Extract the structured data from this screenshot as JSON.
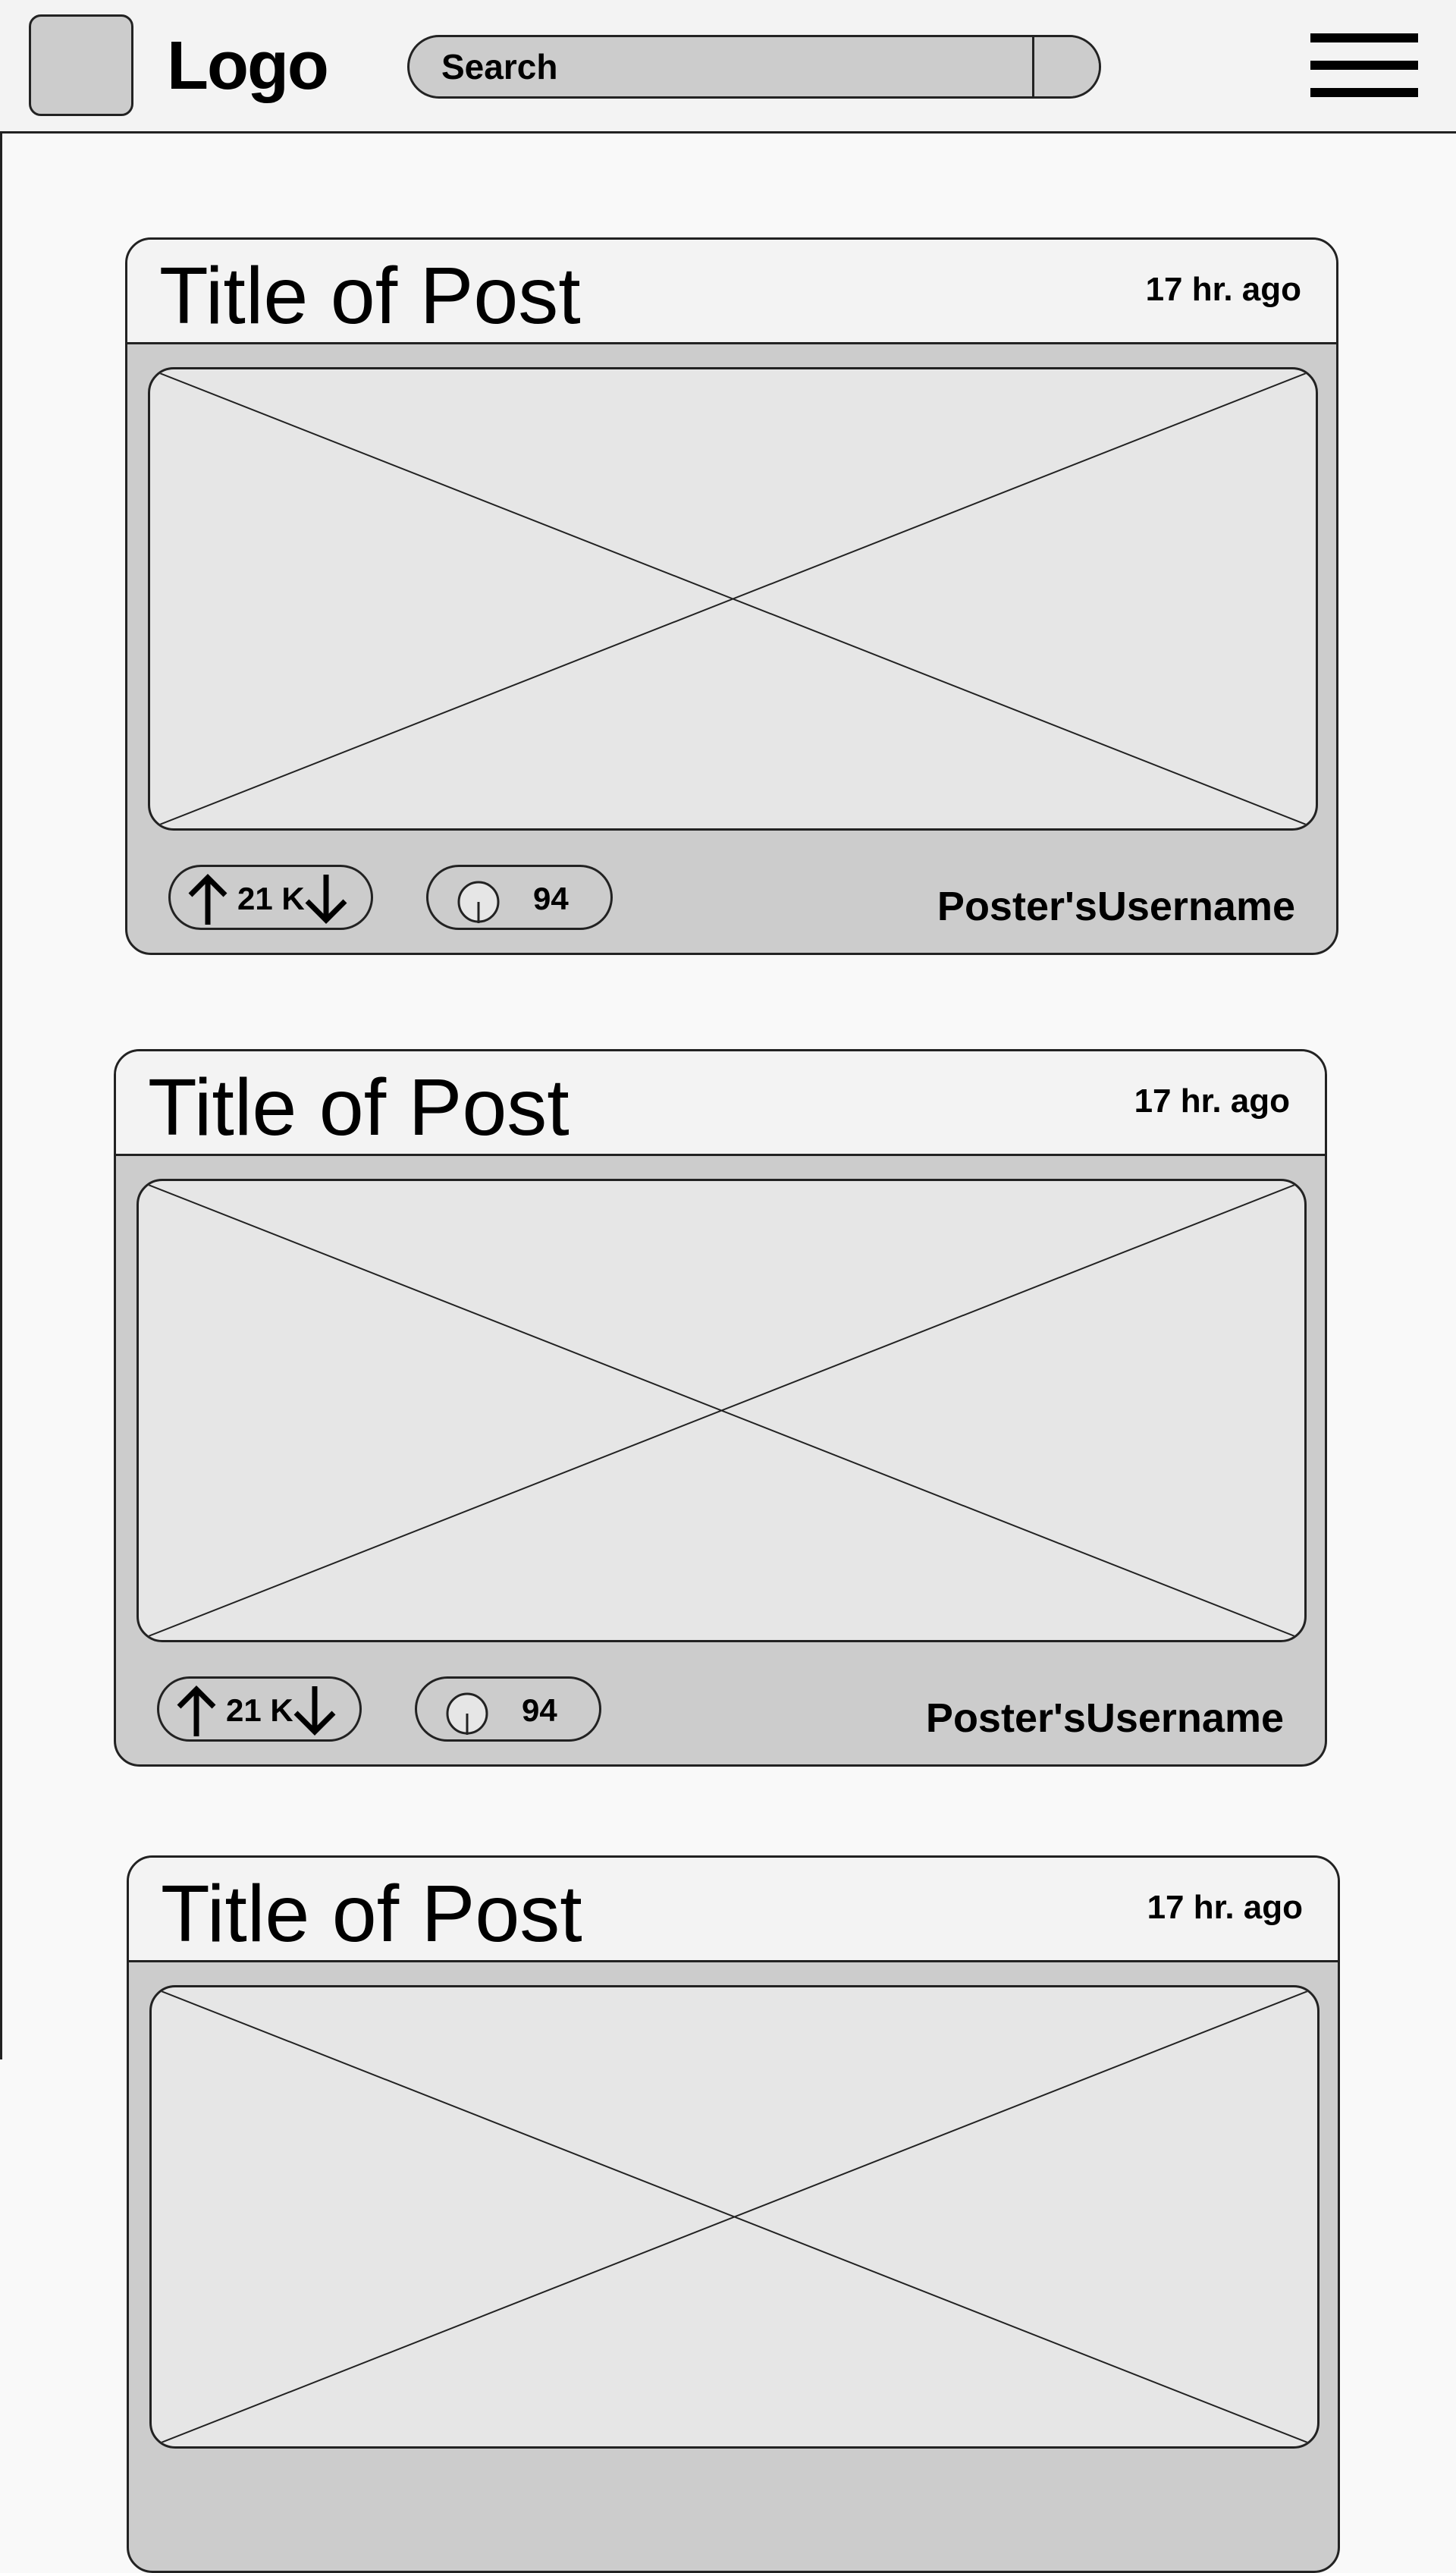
{
  "header": {
    "logo_text": "Logo",
    "search_placeholder": "Search",
    "menu_icon": "hamburger-menu-icon"
  },
  "posts": [
    {
      "title": "Title of Post",
      "time": "17 hr. ago",
      "votes": "21 K",
      "comments": "94",
      "username": "Poster'sUsername"
    },
    {
      "title": "Title of Post",
      "time": "17 hr. ago",
      "votes": "21 K",
      "comments": "94",
      "username": "Poster'sUsername"
    },
    {
      "title": "Title of Post",
      "time": "17 hr. ago"
    }
  ],
  "colors": {
    "page_background": "#f9f9f9",
    "header_background": "#f3f3f3",
    "card_background": "#cccccc",
    "image_placeholder": "#e6e6e6",
    "stroke": "#222222"
  }
}
